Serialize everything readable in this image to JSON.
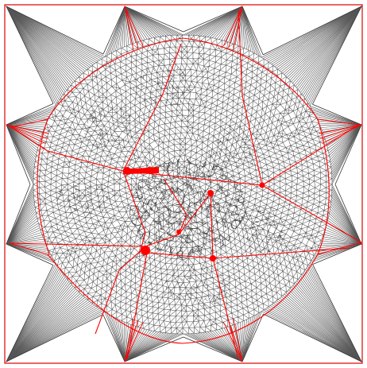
{
  "figure": {
    "background": "#ffffff",
    "mesh_color": "#555555",
    "highlight_color": "#ff0000",
    "frame_color": "#e00000"
  },
  "mesh": {
    "star_points": 12,
    "outer_square": true,
    "inner_disk": true,
    "dense_core": true
  }
}
